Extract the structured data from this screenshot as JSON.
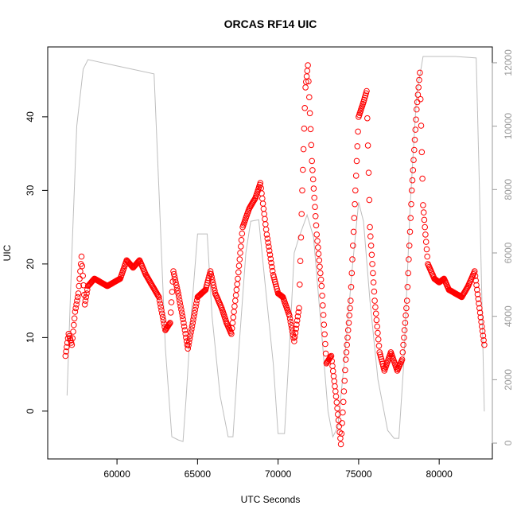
{
  "chart_data": {
    "type": "scatter",
    "title": "ORCAS RF14 UIC",
    "xlabel": "UTC Seconds",
    "ylabel": "UIC",
    "xlim": [
      55700,
      83300
    ],
    "ylim": [
      -6.5,
      49.5
    ],
    "y2lim": [
      -500,
      12500
    ],
    "x_ticks": [
      60000,
      65000,
      70000,
      75000,
      80000
    ],
    "y_ticks": [
      0,
      10,
      20,
      30,
      40
    ],
    "y2_ticks": [
      0,
      2000,
      4000,
      6000,
      8000,
      10000,
      12000
    ],
    "grid": false,
    "legend": "none",
    "colors": {
      "uic": "#ff0000",
      "altitude": "#bebebe",
      "axis": "#000000",
      "axis_right": "#9a9a9a"
    },
    "series": [
      {
        "axis": "left",
        "style": "open-circles",
        "points": [
          [
            56800,
            7.5
          ],
          [
            57000,
            10.5
          ],
          [
            57200,
            9.0
          ],
          [
            57400,
            13.5
          ],
          [
            57600,
            16.0
          ],
          [
            57800,
            21.0
          ],
          [
            58000,
            14.5
          ],
          [
            58200,
            17.0
          ],
          [
            58600,
            18.0
          ],
          [
            59000,
            17.5
          ],
          [
            59400,
            17.0
          ],
          [
            59800,
            17.5
          ],
          [
            60200,
            18.0
          ],
          [
            60600,
            20.5
          ],
          [
            61000,
            19.5
          ],
          [
            61400,
            20.5
          ],
          [
            61800,
            18.5
          ],
          [
            62200,
            17.0
          ],
          [
            62600,
            15.5
          ],
          [
            63000,
            11.0
          ],
          [
            63300,
            12.0
          ],
          [
            63500,
            19.0
          ],
          [
            63800,
            16.0
          ],
          [
            64100,
            12.5
          ],
          [
            64400,
            8.5
          ],
          [
            64700,
            12.0
          ],
          [
            65000,
            15.5
          ],
          [
            65500,
            16.5
          ],
          [
            65800,
            19.0
          ],
          [
            66100,
            16.0
          ],
          [
            66500,
            14.0
          ],
          [
            66800,
            12.0
          ],
          [
            67100,
            10.5
          ],
          [
            67500,
            18.0
          ],
          [
            67800,
            25.0
          ],
          [
            68200,
            27.5
          ],
          [
            68600,
            29.0
          ],
          [
            68900,
            31.0
          ],
          [
            69300,
            24.0
          ],
          [
            69700,
            18.5
          ],
          [
            70000,
            16.0
          ],
          [
            70300,
            15.5
          ],
          [
            70700,
            13.0
          ],
          [
            71000,
            9.5
          ],
          [
            71300,
            14.0
          ],
          [
            71500,
            30.0
          ],
          [
            71700,
            44.0
          ],
          [
            71850,
            47.0
          ],
          [
            72100,
            34.0
          ],
          [
            72400,
            24.0
          ],
          [
            72700,
            17.0
          ],
          [
            73000,
            6.5
          ],
          [
            73300,
            7.5
          ],
          [
            73600,
            2.0
          ],
          [
            73900,
            -4.5
          ],
          [
            74200,
            7.0
          ],
          [
            74500,
            15.0
          ],
          [
            74800,
            30.0
          ],
          [
            75000,
            40.0
          ],
          [
            75300,
            42.0
          ],
          [
            75500,
            43.5
          ],
          [
            75700,
            25.0
          ],
          [
            76000,
            15.0
          ],
          [
            76300,
            8.0
          ],
          [
            76600,
            5.5
          ],
          [
            77000,
            8.0
          ],
          [
            77400,
            5.5
          ],
          [
            77700,
            7.0
          ],
          [
            78000,
            15.0
          ],
          [
            78300,
            30.0
          ],
          [
            78600,
            41.0
          ],
          [
            78800,
            46.0
          ],
          [
            79000,
            28.0
          ],
          [
            79300,
            20.0
          ],
          [
            79700,
            18.0
          ],
          [
            80000,
            17.5
          ],
          [
            80300,
            18.0
          ],
          [
            80600,
            16.5
          ],
          [
            81000,
            16.0
          ],
          [
            81400,
            15.5
          ],
          [
            81800,
            17.0
          ],
          [
            82200,
            19.0
          ],
          [
            82500,
            14.0
          ],
          [
            82800,
            9.0
          ]
        ]
      },
      {
        "axis": "right",
        "style": "line",
        "points": [
          [
            56900,
            1500
          ],
          [
            57200,
            6000
          ],
          [
            57500,
            10000
          ],
          [
            57900,
            11800
          ],
          [
            58200,
            12100
          ],
          [
            60000,
            11900
          ],
          [
            62300,
            11650
          ],
          [
            62600,
            8000
          ],
          [
            63000,
            3000
          ],
          [
            63400,
            200
          ],
          [
            63800,
            100
          ],
          [
            64100,
            50
          ],
          [
            64300,
            1500
          ],
          [
            64600,
            4000
          ],
          [
            65000,
            6600
          ],
          [
            65600,
            6600
          ],
          [
            65900,
            4000
          ],
          [
            66400,
            1500
          ],
          [
            66900,
            200
          ],
          [
            67200,
            200
          ],
          [
            67500,
            2500
          ],
          [
            68000,
            6000
          ],
          [
            68300,
            7000
          ],
          [
            68800,
            7050
          ],
          [
            69200,
            5000
          ],
          [
            69700,
            2500
          ],
          [
            70000,
            300
          ],
          [
            70400,
            300
          ],
          [
            70700,
            3000
          ],
          [
            71000,
            6000
          ],
          [
            71300,
            6500
          ],
          [
            71800,
            7200
          ],
          [
            72200,
            6500
          ],
          [
            72700,
            3500
          ],
          [
            73100,
            1000
          ],
          [
            73400,
            200
          ],
          [
            73700,
            500
          ],
          [
            74100,
            2500
          ],
          [
            74600,
            5500
          ],
          [
            75000,
            7600
          ],
          [
            75300,
            7000
          ],
          [
            75700,
            4500
          ],
          [
            76200,
            2000
          ],
          [
            76800,
            400
          ],
          [
            77200,
            150
          ],
          [
            77500,
            150
          ],
          [
            77800,
            2500
          ],
          [
            78200,
            7500
          ],
          [
            78600,
            11000
          ],
          [
            79000,
            12200
          ],
          [
            81000,
            12200
          ],
          [
            82300,
            12150
          ],
          [
            82500,
            8000
          ],
          [
            82800,
            1000
          ]
        ]
      }
    ]
  }
}
